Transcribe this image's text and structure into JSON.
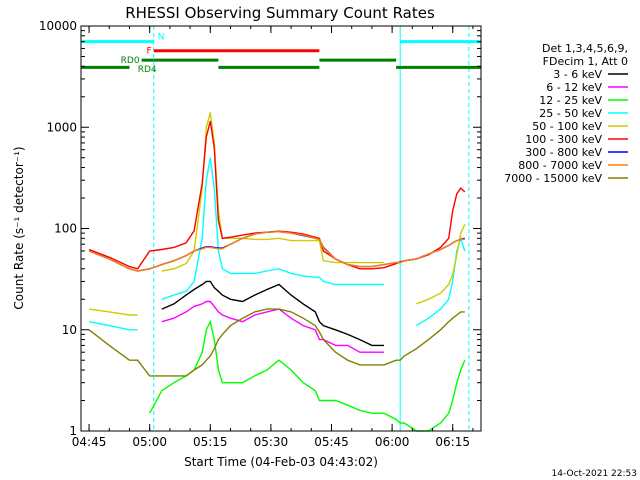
{
  "chart_data": {
    "type": "line",
    "title": "RHESSI Observing Summary Count Rates",
    "xlabel": "Start Time (04-Feb-03 04:43:02)",
    "ylabel": "Count Rate (s⁻¹ detector⁻¹)",
    "yscale": "log",
    "ylim": [
      1,
      10000
    ],
    "xlim": [
      "04:43",
      "06:22"
    ],
    "x_ticks": [
      "04:45",
      "05:00",
      "05:15",
      "05:30",
      "05:45",
      "06:00",
      "06:15"
    ],
    "y_ticks": [
      "1",
      "10",
      "100",
      "1000",
      "10000"
    ],
    "legend_header": [
      "Det 1,3,4,5,6,9,",
      "FDecim 1, Att 0"
    ],
    "legend_position": "right",
    "x": [
      "04:45",
      "04:50",
      "04:55",
      "04:57",
      "05:00",
      "05:03",
      "05:06",
      "05:09",
      "05:11",
      "05:13",
      "05:14",
      "05:15",
      "05:16",
      "05:17",
      "05:18",
      "05:20",
      "05:23",
      "05:26",
      "05:29",
      "05:32",
      "05:35",
      "05:38",
      "05:41",
      "05:42",
      "05:43",
      "05:46",
      "05:49",
      "05:52",
      "05:55",
      "05:58",
      "06:01",
      "06:02",
      "06:03",
      "06:06",
      "06:09",
      "06:12",
      "06:14",
      "06:15",
      "06:16",
      "06:17",
      "06:18"
    ],
    "series": [
      {
        "name": "3 - 6 keV",
        "color": "#000000",
        "values": [
          null,
          null,
          null,
          null,
          null,
          16,
          18,
          22,
          25,
          28,
          30,
          30,
          26,
          24,
          22,
          20,
          19,
          22,
          25,
          28,
          22,
          18,
          15,
          12,
          11,
          10,
          9,
          8,
          7,
          7,
          null,
          null,
          null,
          null,
          null,
          null,
          null,
          null,
          null,
          null,
          null
        ]
      },
      {
        "name": "6 - 12 keV",
        "color": "#ff00ff",
        "values": [
          null,
          null,
          null,
          null,
          null,
          12,
          13,
          15,
          17,
          18,
          19,
          19,
          17,
          15,
          14,
          13,
          12,
          14,
          15,
          16,
          13,
          11,
          10,
          8,
          8,
          7,
          7,
          6,
          6,
          6,
          null,
          null,
          null,
          null,
          null,
          null,
          null,
          null,
          null,
          null,
          null
        ]
      },
      {
        "name": "12 - 25 keV",
        "color": "#00ff00",
        "values": [
          null,
          null,
          null,
          null,
          1.5,
          2.5,
          3,
          3.5,
          4,
          6,
          10,
          12,
          8,
          4,
          3,
          3,
          3,
          3.5,
          4,
          5,
          4,
          3,
          2.5,
          2,
          2,
          2,
          1.8,
          1.6,
          1.5,
          1.5,
          1.3,
          1.2,
          1.2,
          1,
          1,
          1.2,
          1.5,
          2,
          3,
          4,
          5
        ]
      },
      {
        "name": "25 - 50 keV",
        "color": "#00ffff",
        "values": [
          12,
          11,
          10,
          10,
          null,
          20,
          22,
          24,
          30,
          80,
          300,
          500,
          250,
          60,
          40,
          36,
          36,
          36,
          38,
          40,
          36,
          34,
          33,
          33,
          30,
          28,
          28,
          28,
          28,
          28,
          null,
          null,
          null,
          11,
          13,
          16,
          20,
          30,
          60,
          80,
          60
        ]
      },
      {
        "name": "50 - 100 keV",
        "color": "#cccc00",
        "values": [
          16,
          15,
          14,
          14,
          null,
          38,
          40,
          45,
          60,
          250,
          1000,
          1400,
          700,
          150,
          80,
          80,
          80,
          78,
          78,
          80,
          76,
          76,
          76,
          76,
          48,
          46,
          46,
          46,
          46,
          46,
          null,
          null,
          null,
          18,
          20,
          23,
          28,
          35,
          55,
          90,
          110
        ]
      },
      {
        "name": "100 - 300 keV",
        "color": "#ff0000",
        "values": [
          62,
          52,
          42,
          40,
          60,
          62,
          65,
          72,
          95,
          280,
          800,
          1150,
          620,
          120,
          80,
          82,
          86,
          90,
          92,
          94,
          92,
          88,
          82,
          80,
          60,
          50,
          44,
          40,
          40,
          41,
          45,
          47,
          48,
          50,
          55,
          65,
          80,
          150,
          220,
          250,
          230
        ]
      },
      {
        "name": "300 - 800 keV",
        "color": "#0000ff",
        "values": [
          60,
          50,
          40,
          38,
          40,
          44,
          48,
          54,
          60,
          64,
          66,
          66,
          65,
          64,
          64,
          70,
          80,
          88,
          92,
          93,
          90,
          85,
          80,
          78,
          65,
          50,
          44,
          42,
          42,
          44,
          46,
          46,
          48,
          50,
          56,
          62,
          68,
          72,
          76,
          78,
          80
        ]
      },
      {
        "name": "800 - 7000 keV",
        "color": "#ff8000",
        "values": [
          60,
          50,
          40,
          38,
          40,
          44,
          48,
          54,
          60,
          63,
          65,
          65,
          64,
          63,
          63,
          70,
          80,
          88,
          92,
          93,
          90,
          86,
          80,
          78,
          64,
          50,
          44,
          42,
          42,
          44,
          46,
          46,
          48,
          50,
          56,
          62,
          68,
          72,
          76,
          78,
          78
        ]
      },
      {
        "name": "7000 - 15000 keV",
        "color": "#808000",
        "values": [
          10,
          7,
          5,
          5,
          3.5,
          3.5,
          3.5,
          3.5,
          4,
          4.5,
          5,
          5.5,
          6.5,
          8,
          9,
          11,
          13,
          15,
          16,
          16,
          15,
          13,
          11,
          9.5,
          8,
          6,
          5,
          4.5,
          4.5,
          4.5,
          5,
          5,
          5.5,
          6.5,
          8,
          10,
          12,
          13,
          14,
          15,
          15
        ]
      }
    ],
    "bars": [
      {
        "label": "N",
        "color": "#00ffff",
        "label_color": "#00ffff",
        "start": "04:43",
        "end": "05:01",
        "y": 7000
      },
      {
        "label": "",
        "color": "#00ffff",
        "label_color": "#00ffff",
        "start": "06:02",
        "end": "06:22",
        "y": 7000
      },
      {
        "label": "F",
        "color": "#ff0000",
        "label_color": "#ff0000",
        "start": "05:01",
        "end": "05:42",
        "y": 5700
      },
      {
        "label": "RD0",
        "color": "#008000",
        "label_color": "#008000",
        "start": "04:58",
        "end": "05:01",
        "y": 4600
      },
      {
        "label": "RD4",
        "color": "#008000",
        "label_color": "#008000",
        "start": "05:01",
        "end": "05:17",
        "y": 4600
      },
      {
        "label": "",
        "color": "#008000",
        "label_color": "#008000",
        "start": "05:42",
        "end": "06:01",
        "y": 4600
      },
      {
        "label": "",
        "color": "#008000",
        "label_color": "#008000",
        "start": "04:43",
        "end": "04:55",
        "y": 3900
      },
      {
        "label": "",
        "color": "#008000",
        "label_color": "#008000",
        "start": "05:17",
        "end": "05:42",
        "y": 3900
      },
      {
        "label": "",
        "color": "#008000",
        "label_color": "#008000",
        "start": "06:01",
        "end": "06:22",
        "y": 3900
      }
    ],
    "vlines": [
      {
        "time": "05:01",
        "color": "#00ffff",
        "style": "dashed"
      },
      {
        "time": "06:19",
        "color": "#00ffff",
        "style": "dashed"
      },
      {
        "time": "04:43",
        "color": "#00ffff",
        "style": "solid"
      },
      {
        "time": "06:02",
        "color": "#00ffff",
        "style": "solid"
      }
    ],
    "timestamp": "14-Oct-2021 22:53"
  }
}
